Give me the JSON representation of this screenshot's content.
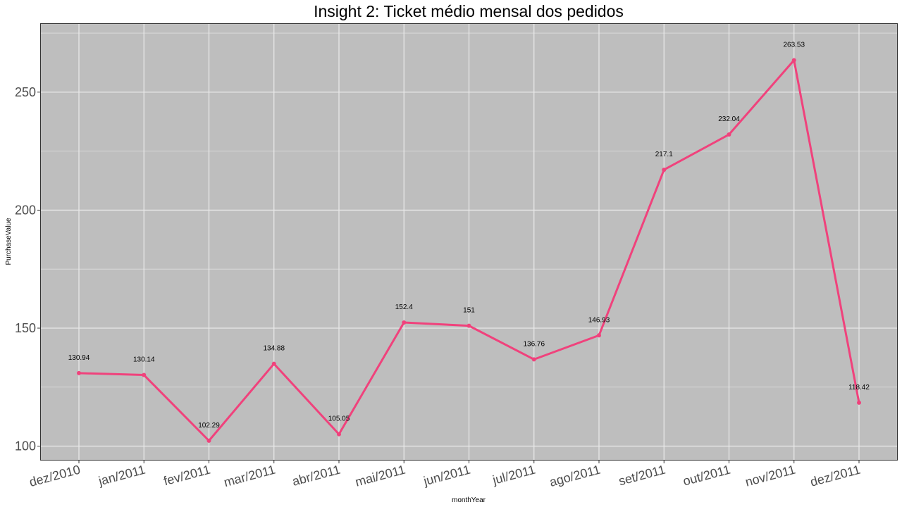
{
  "chart_data": {
    "type": "line",
    "title": "Insight 2: Ticket médio mensal dos pedidos",
    "xlabel": "monthYear",
    "ylabel": "PurchaseValue",
    "categories": [
      "dez/2010",
      "jan/2011",
      "fev/2011",
      "mar/2011",
      "abr/2011",
      "mai/2011",
      "jun/2011",
      "jul/2011",
      "ago/2011",
      "set/2011",
      "out/2011",
      "nov/2011",
      "dez/2011"
    ],
    "series": [
      {
        "values": [
          130.94,
          130.14,
          102.29,
          134.88,
          105.05,
          152.4,
          151,
          136.76,
          146.93,
          217.1,
          232.04,
          263.53,
          118.42
        ],
        "labels": [
          "130.94",
          "130.14",
          "102.29",
          "134.88",
          "105.05",
          "152.4",
          "151",
          "136.76",
          "146.93",
          "217.1",
          "232.04",
          "263.53",
          "118.42"
        ]
      }
    ],
    "ylim": [
      93.9,
      279.2
    ],
    "yticks": [
      100,
      150,
      200,
      250
    ],
    "yticklabels": [
      "100",
      "150",
      "200",
      "250"
    ],
    "grid": true,
    "legend": "none",
    "colors": {
      "line": "#f0427c",
      "panel": "#bebebe",
      "grid": "#e8e8e8"
    }
  }
}
